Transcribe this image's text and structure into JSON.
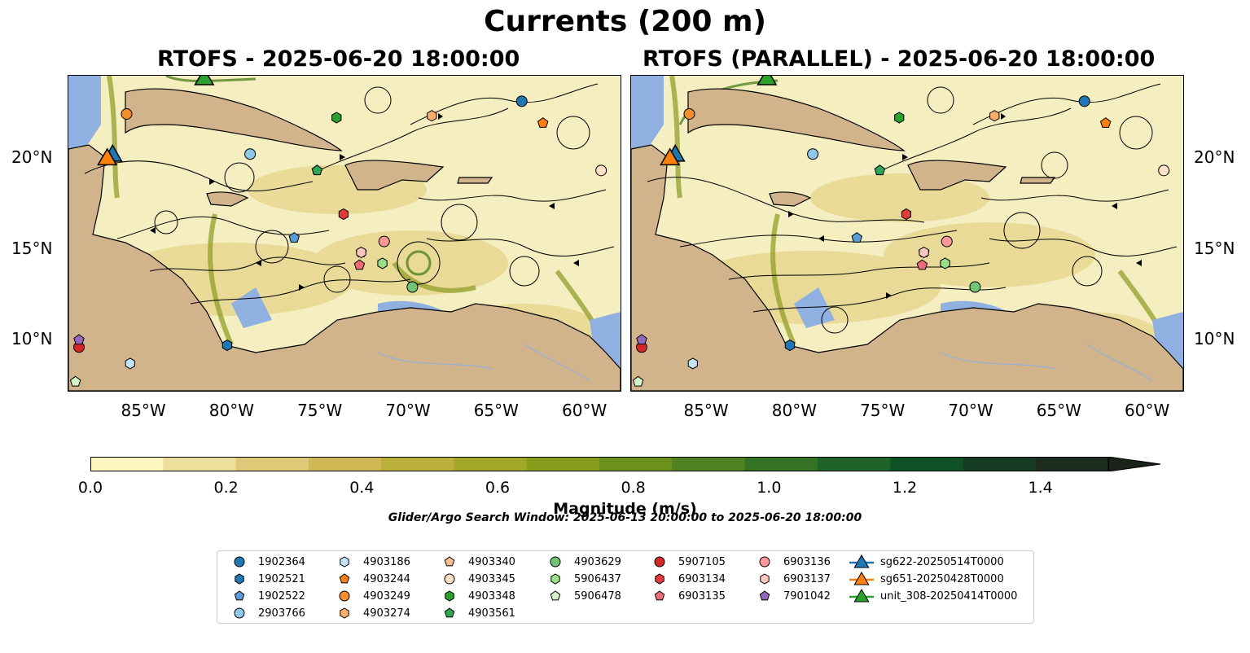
{
  "figure": {
    "suptitle": "Currents (200 m)",
    "panels": [
      {
        "title": "RTOFS - 2025-06-20 18:00:00"
      },
      {
        "title": "RTOFS (PARALLEL) - 2025-06-20 18:00:00"
      }
    ],
    "lon_ticks": [
      "85°W",
      "80°W",
      "75°W",
      "70°W",
      "65°W",
      "60°W"
    ],
    "lat_ticks": [
      "20°N",
      "15°N",
      "10°N"
    ],
    "colors": {
      "land": "#d2b48c",
      "shallow_water": "#8fb0e0",
      "coastline": "#000000",
      "streamline": "#000000"
    }
  },
  "colorbar": {
    "label": "Magnitude (m/s)",
    "ticks": [
      "0.0",
      "0.2",
      "0.4",
      "0.6",
      "0.8",
      "1.0",
      "1.2",
      "1.4"
    ],
    "min": 0.0,
    "max": 1.5,
    "step": 0.1,
    "extend": "max",
    "colors": [
      "#fdf6c0",
      "#ede09c",
      "#dfc978",
      "#d2b854",
      "#bcb03c",
      "#a3a728",
      "#879e1c",
      "#6b911c",
      "#4f8221",
      "#357226",
      "#1f6329",
      "#0f5126",
      "#163d24",
      "#1c2d1f",
      "#1b2319"
    ]
  },
  "search_window": "Glider/Argo Search Window: 2025-06-13 20:00:00 to 2025-06-20 18:00:00",
  "legend": {
    "columns": [
      [
        {
          "label": "1902364",
          "marker": "circle",
          "color": "#1f77b4"
        },
        {
          "label": "1902521",
          "marker": "hexagon",
          "color": "#1f77b4"
        },
        {
          "label": "1902522",
          "marker": "pentagon",
          "color": "#5b9bd5"
        },
        {
          "label": "2903766",
          "marker": "circle",
          "color": "#8ec7e8"
        }
      ],
      [
        {
          "label": "4903186",
          "marker": "hexagon",
          "color": "#c6e2f7"
        },
        {
          "label": "4903244",
          "marker": "pentagon",
          "color": "#ff7f0e"
        },
        {
          "label": "4903249",
          "marker": "circle",
          "color": "#f28e2b"
        },
        {
          "label": "4903274",
          "marker": "hexagon",
          "color": "#fdae6b"
        }
      ],
      [
        {
          "label": "4903340",
          "marker": "pentagon",
          "color": "#fdbf8f"
        },
        {
          "label": "4903345",
          "marker": "circle",
          "color": "#fde0c5"
        },
        {
          "label": "4903348",
          "marker": "hexagon",
          "color": "#2ca02c"
        },
        {
          "label": "4903561",
          "marker": "pentagon",
          "color": "#31a354"
        }
      ],
      [
        {
          "label": "4903629",
          "marker": "circle",
          "color": "#74c476"
        },
        {
          "label": "5906437",
          "marker": "hexagon",
          "color": "#98df8a"
        },
        {
          "label": "5906478",
          "marker": "pentagon",
          "color": "#d4f5c7"
        }
      ],
      [
        {
          "label": "5907105",
          "marker": "circle",
          "color": "#d62728"
        },
        {
          "label": "6903134",
          "marker": "hexagon",
          "color": "#e03a3a"
        },
        {
          "label": "6903135",
          "marker": "pentagon",
          "color": "#f06b78"
        }
      ],
      [
        {
          "label": "6903136",
          "marker": "circle",
          "color": "#ff9896"
        },
        {
          "label": "6903137",
          "marker": "hexagon",
          "color": "#fcc5c0"
        },
        {
          "label": "7901042",
          "marker": "pentagon",
          "color": "#9467bd"
        }
      ],
      [
        {
          "label": "sg622-20250514T0000",
          "marker": "triangle",
          "color": "#1f77b4"
        },
        {
          "label": "sg651-20250428T0000",
          "marker": "triangle",
          "color": "#ff7f0e"
        },
        {
          "label": "unit_308-20250414T0000",
          "marker": "triangle",
          "color": "#2ca02c"
        }
      ]
    ]
  },
  "chart_data": {
    "type": "map",
    "domain": {
      "lon": [
        -89.5,
        -58.2
      ],
      "lat": [
        7.2,
        24.5
      ]
    },
    "argo_floats": [
      {
        "id": "1902364",
        "lon": -63.8,
        "lat": 23.1
      },
      {
        "id": "1902521",
        "lon": -80.5,
        "lat": 9.7
      },
      {
        "id": "1902522",
        "lon": -76.7,
        "lat": 15.6
      },
      {
        "id": "2903766",
        "lon": -79.2,
        "lat": 20.2
      },
      {
        "id": "4903186",
        "lon": -86.0,
        "lat": 8.7
      },
      {
        "id": "4903244",
        "lon": -62.6,
        "lat": 21.9
      },
      {
        "id": "4903249",
        "lon": -86.2,
        "lat": 22.4
      },
      {
        "id": "4903274",
        "lon": -68.9,
        "lat": 22.3
      },
      {
        "id": "4903340",
        "lon": -72.9,
        "lat": 14.8
      },
      {
        "id": "4903345",
        "lon": -59.3,
        "lat": 19.3
      },
      {
        "id": "4903348",
        "lon": -74.3,
        "lat": 22.2
      },
      {
        "id": "4903561",
        "lon": -75.4,
        "lat": 19.3
      },
      {
        "id": "4903629",
        "lon": -70.0,
        "lat": 12.9
      },
      {
        "id": "5906437",
        "lon": -71.7,
        "lat": 14.2
      },
      {
        "id": "5906478",
        "lon": -89.1,
        "lat": 7.7
      },
      {
        "id": "5907105",
        "lon": -88.9,
        "lat": 9.6
      },
      {
        "id": "6903134",
        "lon": -73.9,
        "lat": 16.9
      },
      {
        "id": "6903135",
        "lon": -73.0,
        "lat": 14.1
      },
      {
        "id": "6903136",
        "lon": -71.6,
        "lat": 15.4
      },
      {
        "id": "6903137",
        "lon": -72.9,
        "lat": 14.8
      },
      {
        "id": "7901042",
        "lon": -88.9,
        "lat": 10.0
      }
    ],
    "gliders": [
      {
        "id": "sg622-20250514T0000",
        "lon": -87.0,
        "lat": 20.1
      },
      {
        "id": "sg651-20250428T0000",
        "lon": -87.3,
        "lat": 19.9
      },
      {
        "id": "unit_308-20250414T0000",
        "lon": -81.8,
        "lat": 24.3
      }
    ]
  }
}
